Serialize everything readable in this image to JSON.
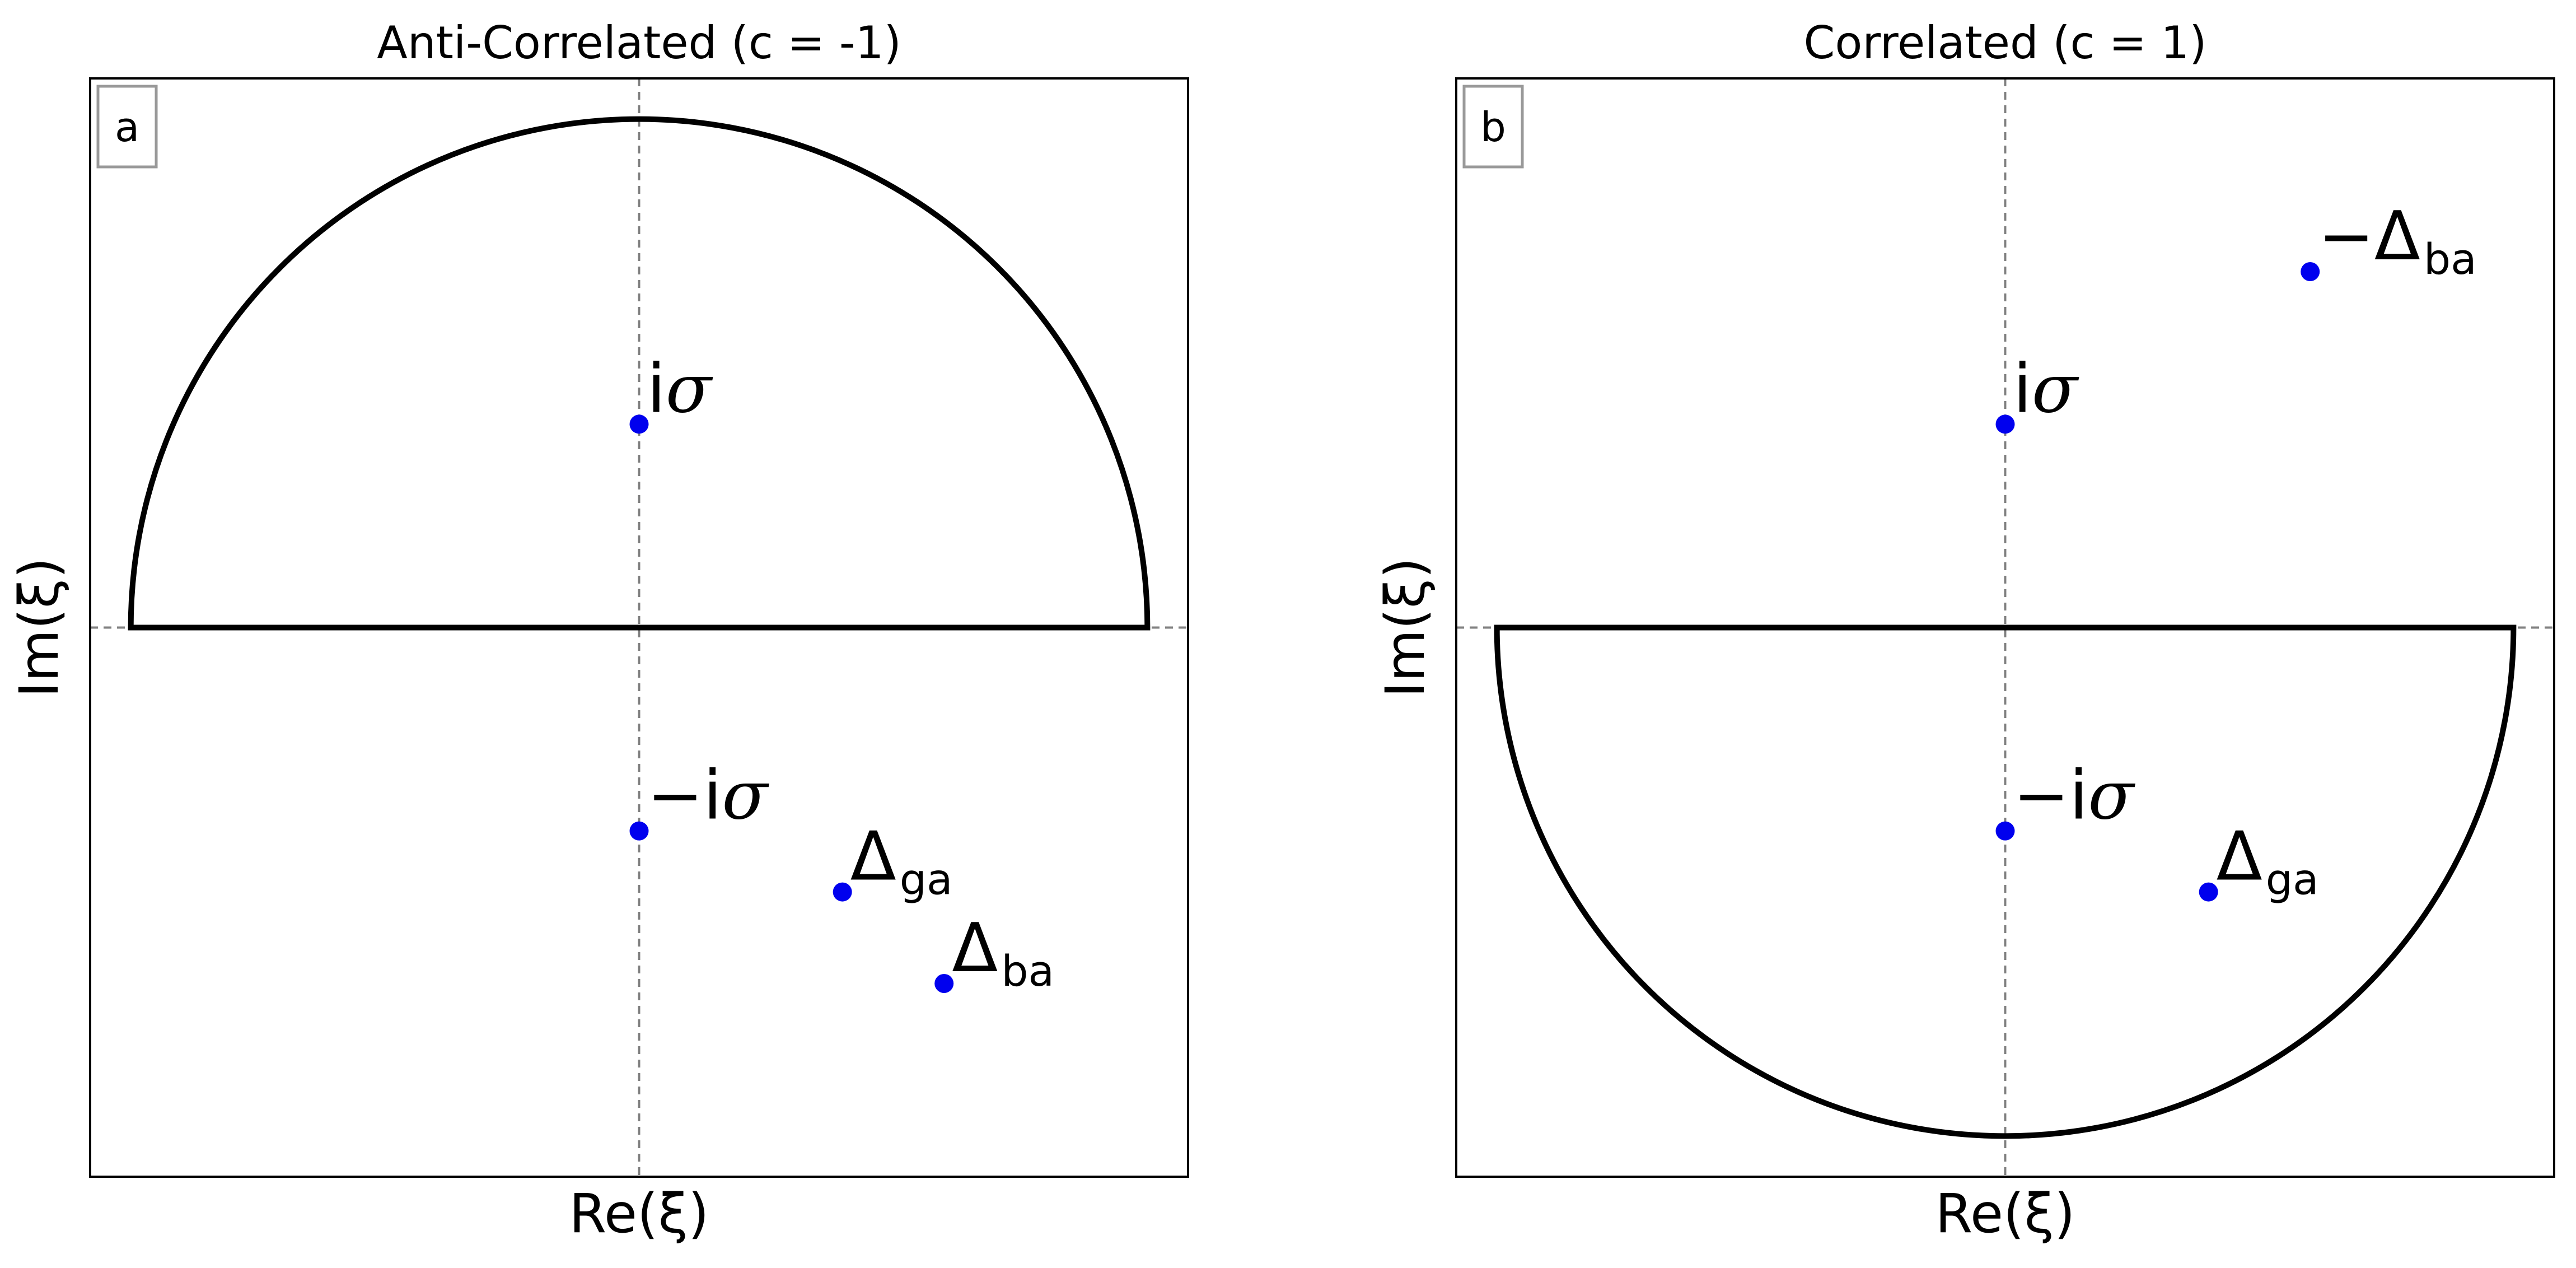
{
  "chart_data": [
    {
      "type": "scatter",
      "panel": "a",
      "title": "Anti-Correlated (c = -1)",
      "xlabel": "Re(ξ)",
      "ylabel": "Im(ξ)",
      "xlim": [
        -1.08,
        1.08
      ],
      "ylim": [
        -1.08,
        1.08
      ],
      "grid": false,
      "contour": {
        "shape": "semicircle",
        "half": "upper",
        "radius": 1.0
      },
      "points": [
        {
          "x": 0.0,
          "y": 0.4,
          "label": "iσ",
          "main": "i",
          "italic": "σ",
          "sub": ""
        },
        {
          "x": 0.0,
          "y": -0.4,
          "label": "−iσ",
          "main": "−i",
          "italic": "σ",
          "sub": ""
        },
        {
          "x": 0.4,
          "y": -0.52,
          "label": "Δga",
          "main": "Δ",
          "italic": "",
          "sub": "ga"
        },
        {
          "x": 0.6,
          "y": -0.7,
          "label": "Δba",
          "main": "Δ",
          "italic": "",
          "sub": "ba"
        }
      ]
    },
    {
      "type": "scatter",
      "panel": "b",
      "title": "Correlated (c = 1)",
      "xlabel": "Re(ξ)",
      "ylabel": "Im(ξ)",
      "xlim": [
        -1.08,
        1.08
      ],
      "ylim": [
        -1.08,
        1.08
      ],
      "grid": false,
      "contour": {
        "shape": "semicircle",
        "half": "lower",
        "radius": 1.0
      },
      "points": [
        {
          "x": 0.6,
          "y": 0.7,
          "label": "−Δba",
          "main": "−Δ",
          "italic": "",
          "sub": "ba"
        },
        {
          "x": 0.0,
          "y": 0.4,
          "label": "iσ",
          "main": "i",
          "italic": "σ",
          "sub": ""
        },
        {
          "x": 0.0,
          "y": -0.4,
          "label": "−iσ",
          "main": "−i",
          "italic": "σ",
          "sub": ""
        },
        {
          "x": 0.4,
          "y": -0.52,
          "label": "Δga",
          "main": "Δ",
          "italic": "",
          "sub": "ga"
        }
      ]
    }
  ],
  "style": {
    "point_color": "#0000ee",
    "contour_color": "#000000",
    "guide_color": "#808080",
    "frame_color": "#000000",
    "legend_box_color": "#999999"
  }
}
